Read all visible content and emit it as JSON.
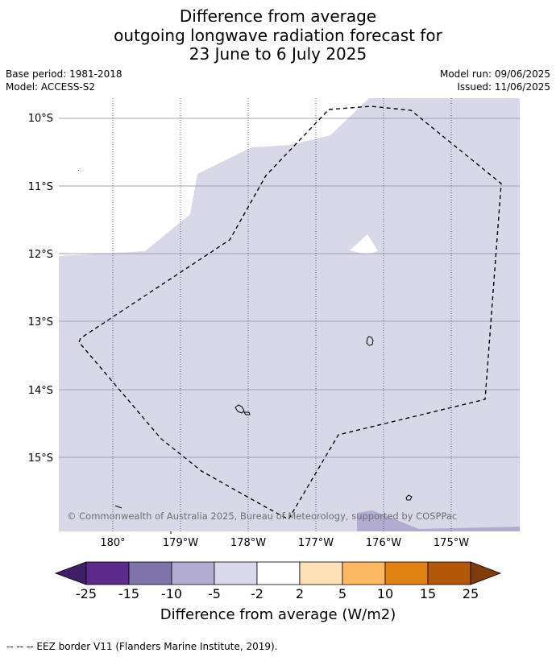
{
  "title": {
    "line1": "Difference from average",
    "line2": "outgoing longwave radiation forecast for",
    "line3": "23 June to 6 July 2025"
  },
  "meta": {
    "base_period": "Base period: 1981-2018",
    "model": "Model: ACCESS-S2",
    "model_run": "Model run: 09/06/2025",
    "issued": "Issued: 11/06/2025"
  },
  "map": {
    "lat_labels": [
      "10°S",
      "11°S",
      "12°S",
      "13°S",
      "14°S",
      "15°S"
    ],
    "lon_labels": [
      "180°",
      "179°W",
      "178°W",
      "177°W",
      "176°W",
      "175°W"
    ],
    "copyright": "© Commonwealth of Australia 2025, Bureau of Meteorology, supported by COSPPac",
    "colors": {
      "light_anomaly": "#d8d8e9",
      "medium_anomaly": "#b2abd2",
      "border": "#000000"
    }
  },
  "colorbar": {
    "title": "Difference from average (W/m2)",
    "tick_labels": [
      "-25",
      "-15",
      "-10",
      "-5",
      "-2",
      "2",
      "5",
      "10",
      "15",
      "25"
    ],
    "colors": [
      "#3f1f66",
      "#5b2a8a",
      "#8073ac",
      "#b2abd2",
      "#d8daeb",
      "#ffffff",
      "#fee0b6",
      "#fdb863",
      "#e08214",
      "#b35806",
      "#7f3b08"
    ]
  },
  "footer": {
    "text": "--  --  -- EEZ border V11 (Flanders Marine Institute, 2019)."
  }
}
